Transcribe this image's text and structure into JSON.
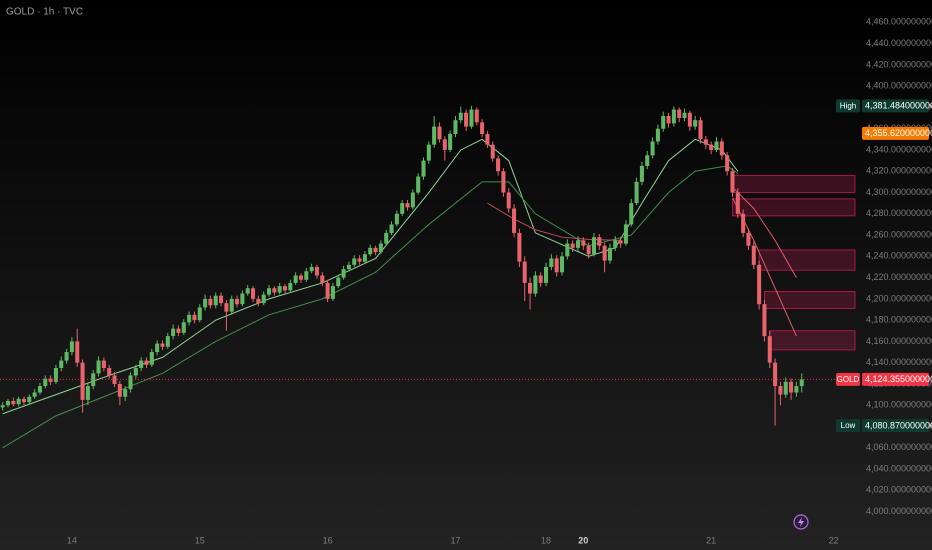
{
  "chart_data": {
    "type": "candlestick",
    "title": "GOLD · 1h · TVC",
    "up_color": "#5fb864",
    "down_color": "#e8636b",
    "ylim": [
      3978,
      4481
    ],
    "xlim": [
      -0.5,
      160
    ],
    "yticks": [
      {
        "value": 4000,
        "label": "4,000.000000000"
      },
      {
        "value": 4020,
        "label": "4,020.000000000"
      },
      {
        "value": 4040,
        "label": "4,040.000000000"
      },
      {
        "value": 4060,
        "label": "4,060.000000000"
      },
      {
        "value": 4080,
        "label": "4,080.000000000"
      },
      {
        "value": 4100,
        "label": "4,100.000000000"
      },
      {
        "value": 4120,
        "label": "4,120.000000000"
      },
      {
        "value": 4140,
        "label": "4,140.000000000"
      },
      {
        "value": 4160,
        "label": "4,160.000000000"
      },
      {
        "value": 4180,
        "label": "4,180.000000000"
      },
      {
        "value": 4200,
        "label": "4,200.000000000"
      },
      {
        "value": 4220,
        "label": "4,220.000000000"
      },
      {
        "value": 4240,
        "label": "4,240.000000000"
      },
      {
        "value": 4260,
        "label": "4,260.000000000"
      },
      {
        "value": 4280,
        "label": "4,280.000000000"
      },
      {
        "value": 4300,
        "label": "4,300.000000000"
      },
      {
        "value": 4320,
        "label": "4,320.000000000"
      },
      {
        "value": 4340,
        "label": "4,340.000000000"
      },
      {
        "value": 4360,
        "label": "4,360.000000000"
      },
      {
        "value": 4380,
        "label": "4,380.000000000"
      },
      {
        "value": 4400,
        "label": "4,400.000000000"
      },
      {
        "value": 4420,
        "label": "4,420.000000000"
      },
      {
        "value": 4440,
        "label": "4,440.000000000"
      },
      {
        "value": 4460,
        "label": "4,460.000000000"
      }
    ],
    "xticks": [
      {
        "value": 13,
        "label": "14"
      },
      {
        "value": 37,
        "label": "15"
      },
      {
        "value": 61,
        "label": "16"
      },
      {
        "value": 85,
        "label": "17"
      },
      {
        "value": 102,
        "label": "18"
      },
      {
        "value": 109,
        "label": "20"
      },
      {
        "value": 133,
        "label": "21"
      },
      {
        "value": 156,
        "label": "22"
      }
    ],
    "bold_xtick": "20",
    "candles": [
      [
        4098,
        4103,
        4095,
        4100
      ],
      [
        4100,
        4106,
        4098,
        4104
      ],
      [
        4104,
        4107,
        4099,
        4101
      ],
      [
        4101,
        4108,
        4099,
        4106
      ],
      [
        4106,
        4108,
        4100,
        4103
      ],
      [
        4103,
        4110,
        4101,
        4108
      ],
      [
        4108,
        4115,
        4106,
        4112
      ],
      [
        4112,
        4121,
        4110,
        4118
      ],
      [
        4118,
        4128,
        4116,
        4125
      ],
      [
        4125,
        4128,
        4119,
        4122
      ],
      [
        4122,
        4138,
        4120,
        4135
      ],
      [
        4135,
        4146,
        4132,
        4142
      ],
      [
        4142,
        4153,
        4139,
        4150
      ],
      [
        4150,
        4164,
        4147,
        4160
      ],
      [
        4160,
        4172,
        4136,
        4140
      ],
      [
        4140,
        4143,
        4093,
        4105
      ],
      [
        4105,
        4121,
        4100,
        4118
      ],
      [
        4118,
        4133,
        4115,
        4130
      ],
      [
        4130,
        4146,
        4127,
        4142
      ],
      [
        4142,
        4145,
        4132,
        4135
      ],
      [
        4135,
        4138,
        4125,
        4128
      ],
      [
        4128,
        4131,
        4117,
        4120
      ],
      [
        4120,
        4123,
        4100,
        4108
      ],
      [
        4108,
        4118,
        4104,
        4115
      ],
      [
        4115,
        4131,
        4112,
        4128
      ],
      [
        4128,
        4138,
        4125,
        4135
      ],
      [
        4135,
        4145,
        4132,
        4142
      ],
      [
        4142,
        4145,
        4135,
        4138
      ],
      [
        4138,
        4153,
        4136,
        4150
      ],
      [
        4150,
        4161,
        4147,
        4158
      ],
      [
        4158,
        4161,
        4152,
        4155
      ],
      [
        4155,
        4168,
        4153,
        4165
      ],
      [
        4165,
        4176,
        4162,
        4172
      ],
      [
        4172,
        4175,
        4165,
        4168
      ],
      [
        4168,
        4181,
        4166,
        4178
      ],
      [
        4178,
        4188,
        4175,
        4185
      ],
      [
        4185,
        4188,
        4177,
        4180
      ],
      [
        4180,
        4195,
        4178,
        4192
      ],
      [
        4192,
        4204,
        4189,
        4200
      ],
      [
        4200,
        4203,
        4191,
        4194
      ],
      [
        4194,
        4206,
        4191,
        4203
      ],
      [
        4203,
        4206,
        4193,
        4196
      ],
      [
        4196,
        4199,
        4170,
        4188
      ],
      [
        4188,
        4203,
        4185,
        4200
      ],
      [
        4200,
        4203,
        4192,
        4195
      ],
      [
        4195,
        4208,
        4193,
        4205
      ],
      [
        4205,
        4213,
        4203,
        4210
      ],
      [
        4210,
        4212,
        4197,
        4200
      ],
      [
        4200,
        4203,
        4193,
        4196
      ],
      [
        4196,
        4207,
        4194,
        4204
      ],
      [
        4204,
        4213,
        4202,
        4210
      ],
      [
        4210,
        4212,
        4203,
        4206
      ],
      [
        4206,
        4215,
        4204,
        4212
      ],
      [
        4212,
        4214,
        4205,
        4208
      ],
      [
        4208,
        4218,
        4206,
        4215
      ],
      [
        4215,
        4225,
        4213,
        4222
      ],
      [
        4222,
        4224,
        4215,
        4218
      ],
      [
        4218,
        4229,
        4216,
        4226
      ],
      [
        4226,
        4233,
        4224,
        4230
      ],
      [
        4230,
        4232,
        4219,
        4222
      ],
      [
        4222,
        4225,
        4212,
        4215
      ],
      [
        4215,
        4218,
        4197,
        4200
      ],
      [
        4200,
        4215,
        4198,
        4212
      ],
      [
        4212,
        4223,
        4210,
        4220
      ],
      [
        4220,
        4231,
        4218,
        4228
      ],
      [
        4228,
        4235,
        4226,
        4232
      ],
      [
        4232,
        4241,
        4230,
        4238
      ],
      [
        4238,
        4241,
        4232,
        4235
      ],
      [
        4235,
        4245,
        4233,
        4242
      ],
      [
        4242,
        4251,
        4240,
        4248
      ],
      [
        4248,
        4250,
        4241,
        4244
      ],
      [
        4244,
        4255,
        4242,
        4252
      ],
      [
        4252,
        4265,
        4250,
        4262
      ],
      [
        4262,
        4273,
        4260,
        4270
      ],
      [
        4270,
        4283,
        4268,
        4280
      ],
      [
        4280,
        4293,
        4278,
        4290
      ],
      [
        4290,
        4293,
        4283,
        4286
      ],
      [
        4286,
        4303,
        4284,
        4300
      ],
      [
        4300,
        4318,
        4298,
        4315
      ],
      [
        4315,
        4333,
        4312,
        4330
      ],
      [
        4330,
        4348,
        4327,
        4345
      ],
      [
        4345,
        4372,
        4342,
        4362
      ],
      [
        4362,
        4366,
        4347,
        4350
      ],
      [
        4350,
        4353,
        4330,
        4340
      ],
      [
        4340,
        4358,
        4338,
        4355
      ],
      [
        4355,
        4372,
        4352,
        4368
      ],
      [
        4368,
        4381,
        4365,
        4375
      ],
      [
        4375,
        4378,
        4358,
        4362
      ],
      [
        4362,
        4381.484,
        4360,
        4378
      ],
      [
        4378,
        4380,
        4363,
        4366
      ],
      [
        4366,
        4369,
        4352,
        4355
      ],
      [
        4355,
        4358,
        4342,
        4345
      ],
      [
        4345,
        4348,
        4329,
        4332
      ],
      [
        4332,
        4335,
        4316,
        4320
      ],
      [
        4320,
        4323,
        4296,
        4300
      ],
      [
        4300,
        4304,
        4281,
        4285
      ],
      [
        4285,
        4289,
        4258,
        4262
      ],
      [
        4262,
        4266,
        4230,
        4235
      ],
      [
        4235,
        4240,
        4198,
        4215
      ],
      [
        4215,
        4220,
        4190,
        4205
      ],
      [
        4205,
        4226,
        4202,
        4222
      ],
      [
        4222,
        4225,
        4211,
        4215
      ],
      [
        4215,
        4234,
        4212,
        4230
      ],
      [
        4230,
        4242,
        4227,
        4238
      ],
      [
        4238,
        4241,
        4221,
        4225
      ],
      [
        4225,
        4244,
        4222,
        4240
      ],
      [
        4240,
        4256,
        4237,
        4252
      ],
      [
        4252,
        4255,
        4244,
        4248
      ],
      [
        4248,
        4259,
        4245,
        4255
      ],
      [
        4255,
        4258,
        4246,
        4250
      ],
      [
        4250,
        4253,
        4238,
        4242
      ],
      [
        4242,
        4262,
        4240,
        4258
      ],
      [
        4258,
        4261,
        4246,
        4250
      ],
      [
        4250,
        4253,
        4225,
        4236
      ],
      [
        4236,
        4252,
        4233,
        4248
      ],
      [
        4248,
        4259,
        4245,
        4255
      ],
      [
        4255,
        4258,
        4248,
        4252
      ],
      [
        4252,
        4274,
        4250,
        4270
      ],
      [
        4270,
        4294,
        4268,
        4290
      ],
      [
        4290,
        4314,
        4288,
        4310
      ],
      [
        4310,
        4329,
        4307,
        4325
      ],
      [
        4325,
        4339,
        4322,
        4335
      ],
      [
        4335,
        4352,
        4332,
        4348
      ],
      [
        4348,
        4364,
        4345,
        4360
      ],
      [
        4360,
        4376,
        4357,
        4372
      ],
      [
        4372,
        4375,
        4361,
        4365
      ],
      [
        4365,
        4381,
        4362,
        4378
      ],
      [
        4378,
        4380,
        4366,
        4370
      ],
      [
        4370,
        4379,
        4367,
        4375
      ],
      [
        4375,
        4377,
        4358,
        4362
      ],
      [
        4362,
        4372,
        4359,
        4368
      ],
      [
        4368,
        4371,
        4346,
        4350
      ],
      [
        4350,
        4353,
        4341,
        4345
      ],
      [
        4345,
        4348,
        4336,
        4340
      ],
      [
        4340,
        4352,
        4338,
        4348
      ],
      [
        4348,
        4351,
        4331,
        4335
      ],
      [
        4335,
        4338,
        4316,
        4320
      ],
      [
        4320,
        4323,
        4296,
        4300
      ],
      [
        4300,
        4304,
        4276,
        4280
      ],
      [
        4280,
        4284,
        4258,
        4262
      ],
      [
        4262,
        4266,
        4246,
        4250
      ],
      [
        4250,
        4254,
        4228,
        4232
      ],
      [
        4232,
        4236,
        4190,
        4195
      ],
      [
        4195,
        4199,
        4160,
        4165
      ],
      [
        4165,
        4170,
        4135,
        4140
      ],
      [
        4140,
        4144,
        4080.87,
        4118
      ],
      [
        4118,
        4122,
        4100,
        4110
      ],
      [
        4110,
        4126,
        4107,
        4122
      ],
      [
        4122,
        4125,
        4105,
        4112
      ],
      [
        4112,
        4122,
        4108,
        4118
      ],
      [
        4118,
        4130,
        4112,
        4124.355
      ]
    ],
    "lines": [
      {
        "color": "#8fd694",
        "x": [
          0,
          10,
          20,
          30,
          40,
          50,
          60,
          70,
          80,
          86,
          90,
          95,
          100,
          110,
          115,
          120,
          125,
          130,
          135,
          138
        ],
        "values": [
          4092,
          4110,
          4128,
          4145,
          4180,
          4200,
          4215,
          4238,
          4300,
          4340,
          4350,
          4330,
          4262,
          4240,
          4248,
          4290,
          4330,
          4350,
          4340,
          4320
        ]
      },
      {
        "color": "#3f8f4a",
        "x": [
          0,
          10,
          20,
          30,
          40,
          50,
          60,
          70,
          80,
          90,
          95,
          100,
          110,
          118,
          125,
          130,
          136,
          138
        ],
        "values": [
          4060,
          4090,
          4110,
          4130,
          4160,
          4185,
          4200,
          4225,
          4270,
          4310,
          4310,
          4280,
          4250,
          4260,
          4300,
          4320,
          4325,
          4318
        ]
      },
      {
        "color": "#c2475a",
        "x": [
          91,
          96,
          100,
          105,
          110,
          116
        ],
        "values": [
          4290,
          4275,
          4265,
          4258,
          4256,
          4255
        ]
      },
      {
        "color": "#e05a6a",
        "x": [
          137,
          141,
          145,
          149
        ],
        "values": [
          4305,
          4285,
          4255,
          4220
        ]
      },
      {
        "color": "#e05a6a",
        "x": [
          137,
          141,
          145,
          149
        ],
        "values": [
          4295,
          4255,
          4210,
          4165
        ]
      }
    ],
    "zone_color": "#e91e63",
    "zones": [
      {
        "x": [
          137,
          160
        ],
        "y": [
          4300,
          4316
        ]
      },
      {
        "x": [
          137,
          160
        ],
        "y": [
          4278,
          4294
        ]
      },
      {
        "x": [
          142,
          160
        ],
        "y": [
          4227,
          4246
        ]
      },
      {
        "x": [
          143,
          160
        ],
        "y": [
          4191,
          4207
        ]
      },
      {
        "x": [
          144,
          160
        ],
        "y": [
          4152,
          4170
        ]
      }
    ],
    "price_tags": [
      {
        "name": "High",
        "value": 4381.484,
        "label": "4,381.484000000",
        "color": "#0e3b31"
      },
      {
        "value": 4355.62,
        "label": "4,355.620000000",
        "color": "#f57c00"
      },
      {
        "name": "GOLD",
        "value": 4124.355,
        "label": "4,124.355000000",
        "color": "#f23645",
        "dashed": true
      },
      {
        "name": "Low",
        "value": 4080.87,
        "label": "4,080.870000000",
        "color": "#0e3b31"
      }
    ]
  }
}
